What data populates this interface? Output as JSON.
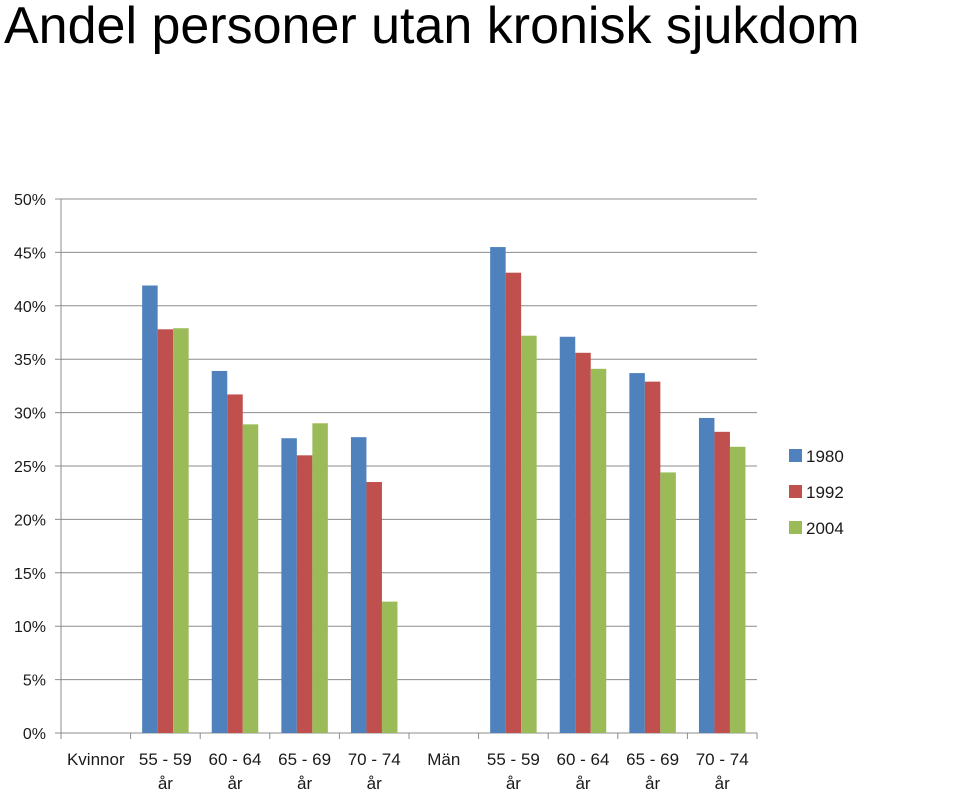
{
  "chart_data": {
    "type": "bar",
    "title": "Andel personer utan kronisk sjukdom",
    "categories": [
      "Kvinnor",
      "55 - 59 år",
      "60 - 64 år",
      "65 - 69 år",
      "70 - 74 år",
      "Män",
      "55 - 59 år",
      "60 - 64 år",
      "65 - 69 år",
      "70 - 74 år"
    ],
    "category_lines": [
      [
        "Kvinnor"
      ],
      [
        "55 - 59",
        "år"
      ],
      [
        "60 - 64",
        "år"
      ],
      [
        "65 - 69",
        "år"
      ],
      [
        "70 - 74",
        "år"
      ],
      [
        "Män"
      ],
      [
        "55 - 59",
        "år"
      ],
      [
        "60 - 64",
        "år"
      ],
      [
        "65 - 69",
        "år"
      ],
      [
        "70 - 74",
        "år"
      ]
    ],
    "series": [
      {
        "name": "1980",
        "color": "#4F81BD",
        "values": [
          null,
          41.9,
          33.9,
          27.6,
          27.7,
          null,
          45.5,
          37.1,
          33.7,
          29.5
        ]
      },
      {
        "name": "1992",
        "color": "#C0504D",
        "values": [
          null,
          37.8,
          31.7,
          26.0,
          23.5,
          null,
          43.1,
          35.6,
          32.9,
          28.2
        ]
      },
      {
        "name": "2004",
        "color": "#9BBB59",
        "values": [
          null,
          37.9,
          28.9,
          29.0,
          12.3,
          null,
          37.2,
          34.1,
          24.4,
          26.8
        ]
      }
    ],
    "yticks": [
      "0%",
      "5%",
      "10%",
      "15%",
      "20%",
      "25%",
      "30%",
      "35%",
      "40%",
      "45%",
      "50%"
    ],
    "ylim": [
      0,
      50
    ],
    "y_unit": "%",
    "grid": true,
    "legend_position": "right"
  }
}
